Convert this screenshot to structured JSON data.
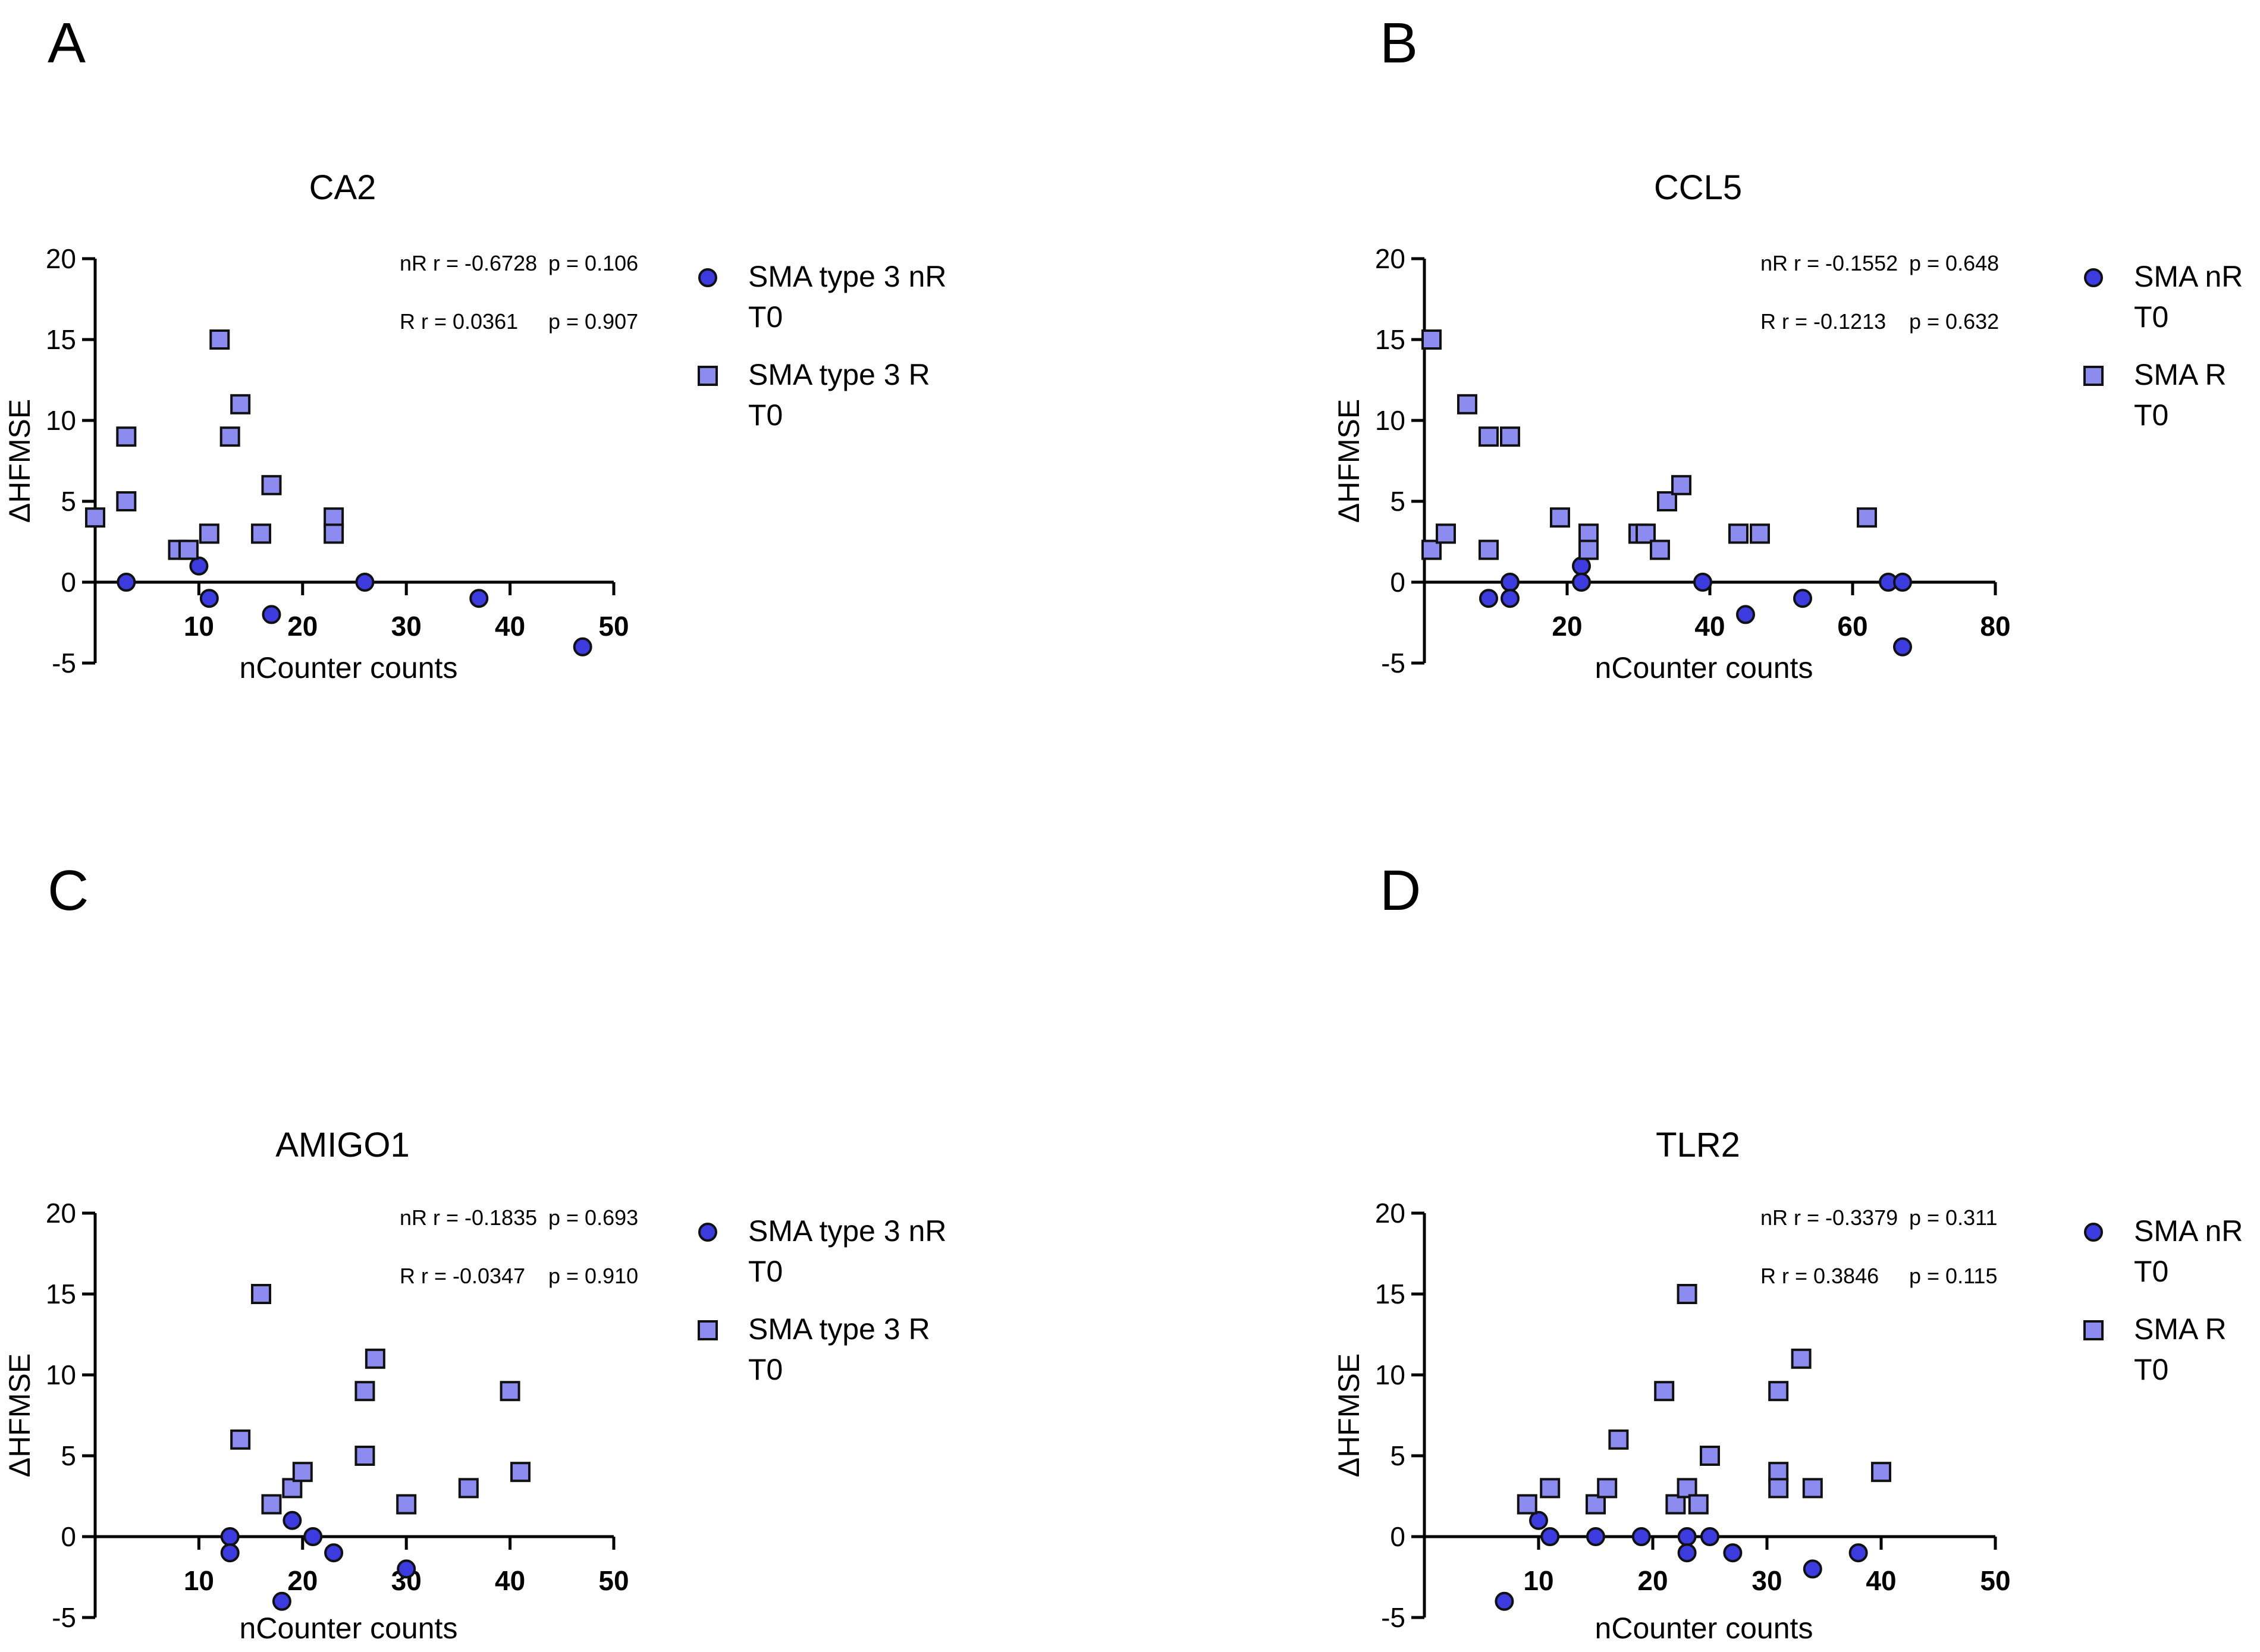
{
  "colors": {
    "nR": "#3b3be0",
    "R": "#8c8cf0",
    "outline": "#111111"
  },
  "chart_data": [
    {
      "panel_letter": "A",
      "type": "scatter",
      "title": "CA2",
      "xlabel": "nCounter counts",
      "ylabel": "ΔHFMSE",
      "xlim": [
        0,
        50
      ],
      "ylim": [
        -5,
        20
      ],
      "xticks": [
        "10",
        "20",
        "30",
        "40",
        "50"
      ],
      "yticks": [
        "-5",
        "0",
        "5",
        "10",
        "15",
        "20"
      ],
      "stats": [
        {
          "label": "nR",
          "r": "r = -0.6728",
          "p": "p = 0.106"
        },
        {
          "label": "R",
          "r": "r = 0.0361",
          "p": "p = 0.907"
        }
      ],
      "series": [
        {
          "name": "SMA type 3 nR",
          "name2": "T0",
          "marker": "circle",
          "x": [
            3,
            10,
            11,
            17,
            26,
            37,
            47
          ],
          "y": [
            0,
            1,
            -1,
            -2,
            0,
            -1,
            -4
          ]
        },
        {
          "name": "SMA type 3 R",
          "name2": "T0",
          "marker": "square",
          "x": [
            0,
            3,
            3,
            8,
            9,
            11,
            12,
            13,
            14,
            16,
            17,
            23,
            23
          ],
          "y": [
            4,
            9,
            5,
            2,
            2,
            3,
            15,
            9,
            11,
            3,
            6,
            4,
            3
          ]
        }
      ]
    },
    {
      "panel_letter": "B",
      "type": "scatter",
      "title": "CCL5",
      "xlabel": "nCounter counts",
      "ylabel": "ΔHFMSE",
      "xlim": [
        0,
        80
      ],
      "ylim": [
        -5,
        20
      ],
      "xticks": [
        "20",
        "40",
        "60",
        "80"
      ],
      "yticks": [
        "-5",
        "0",
        "5",
        "10",
        "15",
        "20"
      ],
      "stats": [
        {
          "label": "nR",
          "r": "r = -0.1552",
          "p": "p = 0.648"
        },
        {
          "label": "R",
          "r": "r = -0.1213",
          "p": "p = 0.632"
        }
      ],
      "series": [
        {
          "name": "SMA nR",
          "name2": "T0",
          "marker": "circle",
          "x": [
            9,
            12,
            12,
            22,
            22,
            39,
            45,
            53,
            65,
            67,
            67
          ],
          "y": [
            -1,
            0,
            -1,
            1,
            0,
            0,
            -2,
            -1,
            0,
            0,
            -4
          ]
        },
        {
          "name": "SMA R",
          "name2": "T0",
          "marker": "square",
          "x": [
            1,
            1,
            3,
            6,
            9,
            9,
            12,
            19,
            23,
            23,
            30,
            31,
            33,
            34,
            36,
            44,
            47,
            62
          ],
          "y": [
            15,
            2,
            3,
            11,
            9,
            2,
            9,
            4,
            3,
            2,
            3,
            3,
            2,
            5,
            6,
            3,
            3,
            4
          ]
        }
      ]
    },
    {
      "panel_letter": "C",
      "type": "scatter",
      "title": "AMIGO1",
      "xlabel": "nCounter counts",
      "ylabel": "ΔHFMSE",
      "xlim": [
        0,
        50
      ],
      "ylim": [
        -5,
        20
      ],
      "xticks": [
        "10",
        "20",
        "30",
        "40",
        "50"
      ],
      "yticks": [
        "-5",
        "0",
        "5",
        "10",
        "15",
        "20"
      ],
      "stats": [
        {
          "label": "nR",
          "r": "r = -0.1835",
          "p": "p = 0.693"
        },
        {
          "label": "R",
          "r": "r = -0.0347",
          "p": "p = 0.910"
        }
      ],
      "series": [
        {
          "name": "SMA type 3 nR",
          "name2": "T0",
          "marker": "circle",
          "x": [
            13,
            13,
            18,
            19,
            21,
            23,
            30
          ],
          "y": [
            0,
            -1,
            -4,
            1,
            0,
            -1,
            -2
          ]
        },
        {
          "name": "SMA type 3 R",
          "name2": "T0",
          "marker": "square",
          "x": [
            14,
            16,
            17,
            19,
            20,
            26,
            26,
            27,
            30,
            36,
            40,
            41
          ],
          "y": [
            6,
            15,
            2,
            3,
            4,
            9,
            5,
            11,
            2,
            3,
            9,
            4
          ]
        }
      ]
    },
    {
      "panel_letter": "D",
      "type": "scatter",
      "title": "TLR2",
      "xlabel": "nCounter counts",
      "ylabel": "ΔHFMSE",
      "xlim": [
        0,
        50
      ],
      "ylim": [
        -5,
        20
      ],
      "xticks": [
        "10",
        "20",
        "30",
        "40",
        "50"
      ],
      "yticks": [
        "-5",
        "0",
        "5",
        "10",
        "15",
        "20"
      ],
      "stats": [
        {
          "label": "nR",
          "r": "r = -0.3379",
          "p": "p = 0.311"
        },
        {
          "label": "R",
          "r": "r = 0.3846",
          "p": "p = 0.115"
        }
      ],
      "series": [
        {
          "name": "SMA nR",
          "name2": "T0",
          "marker": "circle",
          "x": [
            7,
            10,
            11,
            15,
            19,
            23,
            23,
            25,
            27,
            34,
            38
          ],
          "y": [
            -4,
            1,
            0,
            0,
            0,
            0,
            -1,
            0,
            -1,
            -2,
            -1
          ]
        },
        {
          "name": "SMA R",
          "name2": "T0",
          "marker": "square",
          "x": [
            9,
            11,
            15,
            16,
            17,
            21,
            22,
            23,
            23,
            24,
            25,
            31,
            31,
            31,
            33,
            34,
            40
          ],
          "y": [
            2,
            3,
            2,
            3,
            6,
            9,
            2,
            15,
            3,
            2,
            5,
            9,
            4,
            3,
            11,
            3,
            4
          ]
        }
      ]
    }
  ]
}
